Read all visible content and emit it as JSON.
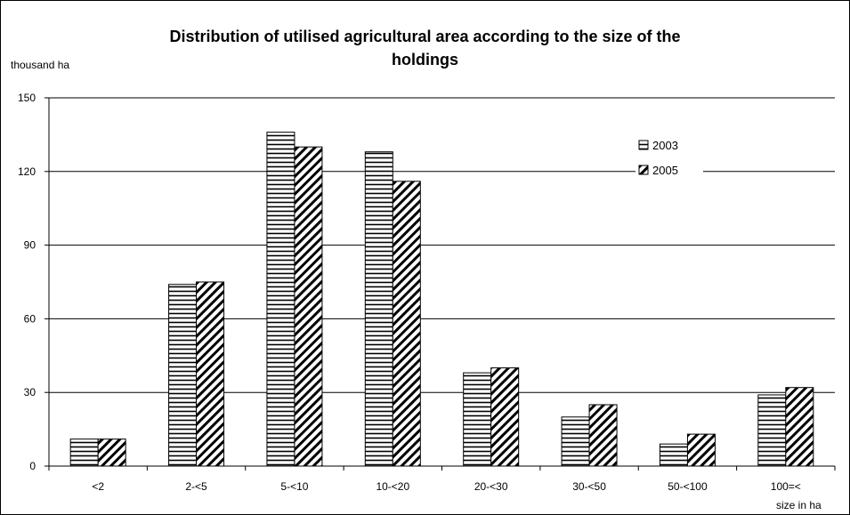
{
  "chart_data": {
    "type": "bar",
    "title": "Distribution of utilised agricultural area according to the size of the\nholdings",
    "ylabel": "thousand ha",
    "xlabel": "size in ha",
    "categories": [
      "<2",
      "2-<5",
      "5-<10",
      "10-<20",
      "20-<30",
      "30-<50",
      "50-<100",
      "100=<"
    ],
    "series": [
      {
        "name": "2003",
        "values": [
          11,
          74,
          136,
          128,
          38,
          20,
          9,
          29
        ],
        "pattern": "horizontal-stripes"
      },
      {
        "name": "2005",
        "values": [
          11,
          75,
          130,
          116,
          40,
          25,
          13,
          32
        ],
        "pattern": "diagonal-stripes"
      }
    ],
    "ylim": [
      0,
      150
    ],
    "yticks": [
      0,
      30,
      60,
      90,
      120,
      150
    ],
    "grid": true,
    "legend_position": "top-right",
    "colors": {
      "bar_fill": "#ffffff",
      "stroke": "#000000",
      "grid": "#000000"
    }
  }
}
